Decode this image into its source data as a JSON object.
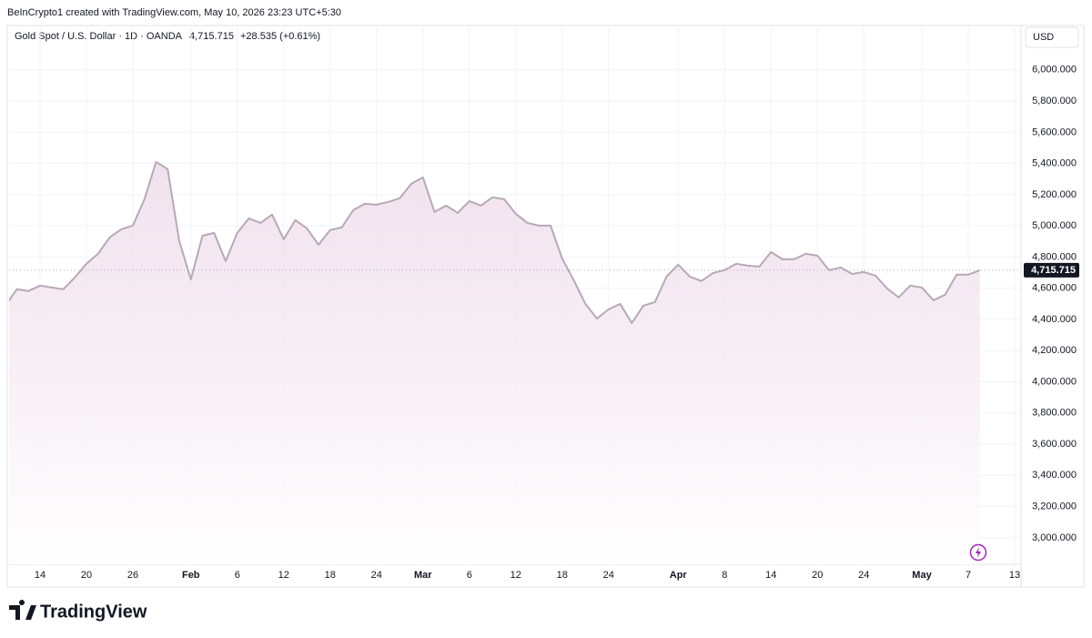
{
  "caption": "BeInCrypto1 created with TradingView.com, May 10, 2026 23:23 UTC+5:30",
  "brand": "TradingView",
  "chart_data": {
    "type": "area",
    "title": "Gold Spot / U.S. Dollar · 1D · OANDA",
    "price_text": "4,715.715",
    "change_text": "+28.535 (+0.61%)",
    "y_unit": "USD",
    "color": "#b7a9b6",
    "fill_color": "#ecd9e8",
    "grid": true,
    "categories": [
      null,
      null,
      null,
      "14",
      null,
      null,
      null,
      "20",
      null,
      null,
      null,
      "26",
      null,
      null,
      null,
      null,
      "Feb",
      null,
      null,
      null,
      "6",
      null,
      null,
      null,
      "12",
      null,
      null,
      null,
      "18",
      null,
      null,
      null,
      "24",
      null,
      null,
      null,
      "Mar",
      null,
      null,
      null,
      "6",
      null,
      null,
      null,
      "12",
      null,
      null,
      null,
      "18",
      null,
      null,
      null,
      "24",
      null,
      null,
      null,
      null,
      null,
      "Apr",
      null,
      null,
      null,
      "8",
      null,
      null,
      null,
      "14",
      null,
      null,
      null,
      "20",
      null,
      null,
      null,
      "24",
      null,
      null,
      null,
      null,
      "May",
      null,
      null,
      null,
      "7",
      null,
      null,
      null,
      "13"
    ],
    "values": [
      4488,
      4593,
      4582,
      4617,
      4605,
      4593,
      4669,
      4757,
      4821,
      4926,
      4978,
      5002,
      5171,
      5410,
      5364,
      4902,
      4657,
      4937,
      4955,
      4774,
      4955,
      5048,
      5019,
      5072,
      4914,
      5037,
      4984,
      4879,
      4973,
      4990,
      5101,
      5142,
      5136,
      5153,
      5177,
      5270,
      5311,
      5089,
      5130,
      5083,
      5159,
      5130,
      5183,
      5171,
      5078,
      5019,
      5002,
      5002,
      4791,
      4652,
      4500,
      4406,
      4465,
      4500,
      4377,
      4488,
      4512,
      4675,
      4751,
      4675,
      4646,
      4698,
      4716,
      4757,
      4745,
      4739,
      4832,
      4786,
      4786,
      4821,
      4809,
      4716,
      4733,
      4692,
      4704,
      4681,
      4599,
      4541,
      4617,
      4605,
      4523,
      4558,
      4687,
      4687,
      4715.715,
      null,
      null,
      null
    ],
    "ylim": [
      2830,
      6285
    ],
    "yticks": [
      {
        "value": 3000,
        "label": "3,000.000"
      },
      {
        "value": 3200,
        "label": "3,200.000"
      },
      {
        "value": 3400,
        "label": "3,400.000"
      },
      {
        "value": 3600,
        "label": "3,600.000"
      },
      {
        "value": 3800,
        "label": "3,800.000"
      },
      {
        "value": 4000,
        "label": "4,000.000"
      },
      {
        "value": 4200,
        "label": "4,200.000"
      },
      {
        "value": 4400,
        "label": "4,400.000"
      },
      {
        "value": 4600,
        "label": "4,600.000"
      },
      {
        "value": 4800,
        "label": "4,800.000"
      },
      {
        "value": 5000,
        "label": "5,000.000"
      },
      {
        "value": 5200,
        "label": "5,200.000"
      },
      {
        "value": 5400,
        "label": "5,400.000"
      },
      {
        "value": 5600,
        "label": "5,600.000"
      },
      {
        "value": 5800,
        "label": "5,800.000"
      },
      {
        "value": 6000,
        "label": "6,000.000"
      }
    ]
  }
}
